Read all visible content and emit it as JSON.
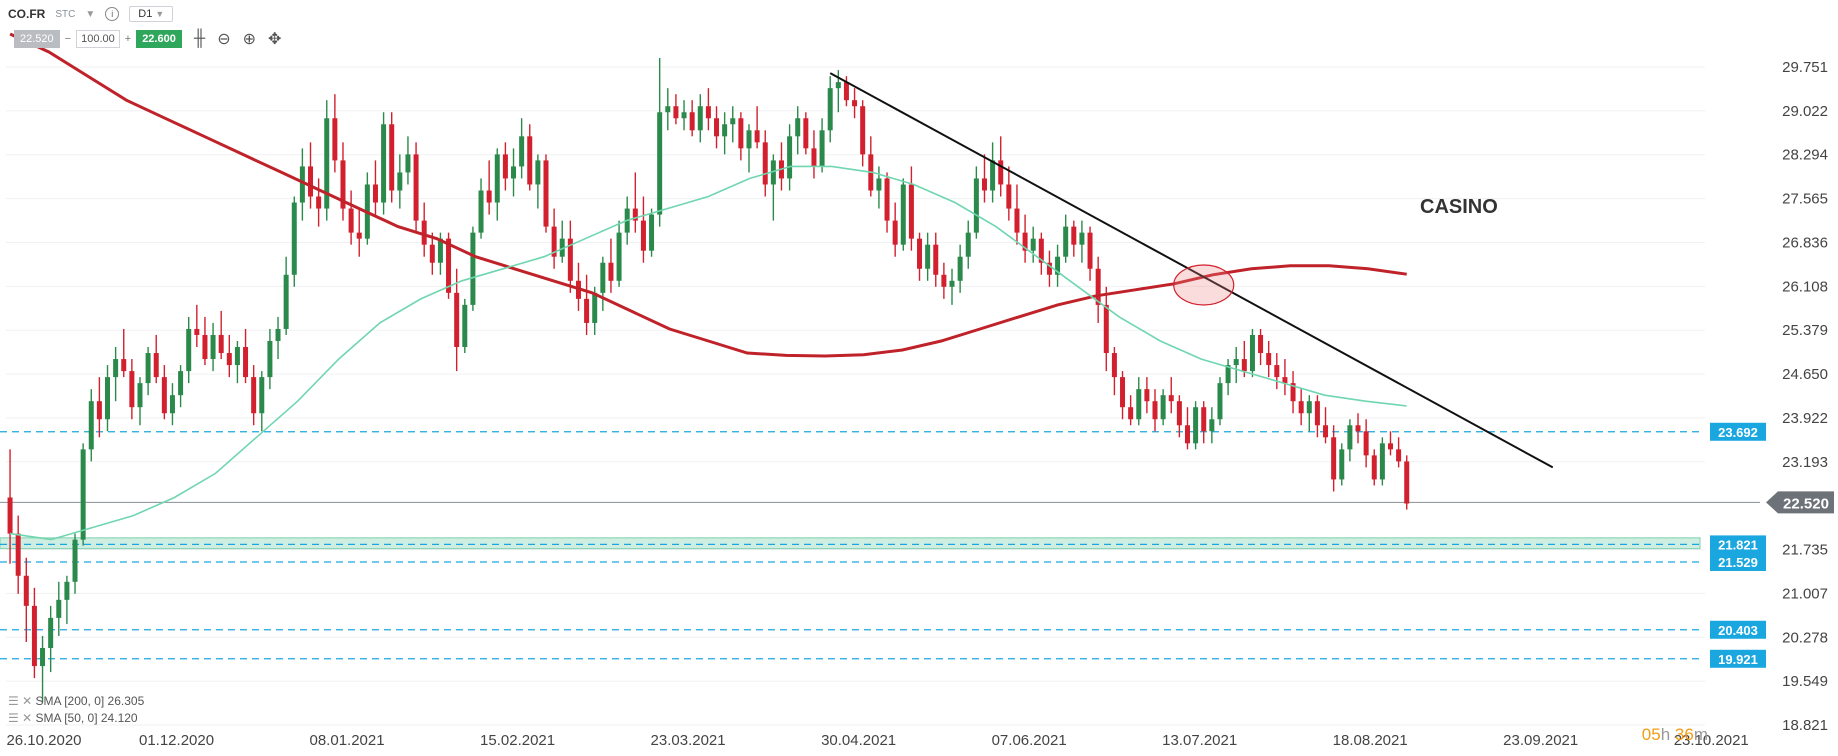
{
  "toolbar": {
    "symbol": "CO.FR",
    "exchange": "STC",
    "timeframe": "D1",
    "bid": "22.520",
    "volume": "100.00",
    "ask": "22.600",
    "minus": "−",
    "plus": "+",
    "icons": [
      "chevron-down-icon",
      "info-icon",
      "candles-icon",
      "zoom-out-icon",
      "zoom-in-icon",
      "crosshair-icon"
    ]
  },
  "indicators": {
    "sma200": "SMA [200, 0] 26.305",
    "sma50": "SMA [50, 0] 24.120"
  },
  "countdown": {
    "h": "05",
    "hl": "h",
    "m": "36",
    "ml": "m"
  },
  "chart_data": {
    "type": "candlestick",
    "title": "CASINO",
    "ylim": [
      18.821,
      30.2
    ],
    "y_ticks": [
      "29.751",
      "29.022",
      "28.294",
      "27.565",
      "26.836",
      "26.108",
      "25.379",
      "24.650",
      "23.922",
      "23.193",
      "22.520",
      "21.735",
      "21.007",
      "20.278",
      "19.549",
      "18.821"
    ],
    "x_ticks": [
      "26.10.2020",
      "01.12.2020",
      "08.01.2021",
      "15.02.2021",
      "23.03.2021",
      "30.04.2021",
      "07.06.2021",
      "13.07.2021",
      "18.08.2021",
      "23.09.2021",
      "23.10.2021"
    ],
    "current_price": 22.52,
    "levels": [
      23.692,
      21.821,
      21.529,
      20.403,
      19.921
    ],
    "support_zone": [
      21.75,
      21.93
    ],
    "colors": {
      "up": "#2b8a4b",
      "down": "#d2202e",
      "sma200": "#c0222a",
      "sma50": "#6fd6b0",
      "level": "#1aa7e0",
      "trend": "#111111",
      "price": "#7a7f85"
    },
    "ohlc": [
      [
        22.6,
        23.4,
        21.5,
        22.0
      ],
      [
        22.0,
        22.3,
        21.0,
        21.3
      ],
      [
        21.3,
        21.6,
        20.2,
        20.8
      ],
      [
        20.8,
        21.1,
        19.6,
        19.8
      ],
      [
        19.8,
        20.3,
        19.2,
        20.1
      ],
      [
        20.1,
        20.8,
        19.7,
        20.6
      ],
      [
        20.6,
        21.2,
        20.3,
        20.9
      ],
      [
        20.9,
        21.3,
        20.5,
        21.2
      ],
      [
        21.2,
        22.0,
        21.0,
        21.9
      ],
      [
        21.9,
        23.5,
        21.8,
        23.4
      ],
      [
        23.4,
        24.4,
        23.2,
        24.2
      ],
      [
        24.2,
        24.6,
        23.6,
        23.9
      ],
      [
        23.9,
        24.8,
        23.7,
        24.6
      ],
      [
        24.6,
        25.1,
        24.2,
        24.9
      ],
      [
        24.9,
        25.4,
        24.6,
        24.7
      ],
      [
        24.7,
        24.9,
        23.9,
        24.1
      ],
      [
        24.1,
        24.6,
        23.8,
        24.5
      ],
      [
        24.5,
        25.1,
        24.3,
        25.0
      ],
      [
        25.0,
        25.3,
        24.5,
        24.6
      ],
      [
        24.6,
        24.8,
        23.9,
        24.0
      ],
      [
        24.0,
        24.5,
        23.8,
        24.3
      ],
      [
        24.3,
        24.8,
        24.1,
        24.7
      ],
      [
        24.7,
        25.6,
        24.5,
        25.4
      ],
      [
        25.4,
        25.8,
        25.1,
        25.3
      ],
      [
        25.3,
        25.6,
        24.8,
        24.9
      ],
      [
        24.9,
        25.5,
        24.7,
        25.3
      ],
      [
        25.3,
        25.7,
        24.9,
        25.0
      ],
      [
        25.0,
        25.3,
        24.6,
        24.8
      ],
      [
        24.8,
        25.2,
        24.5,
        25.1
      ],
      [
        25.1,
        25.4,
        24.5,
        24.6
      ],
      [
        24.6,
        24.8,
        23.8,
        24.0
      ],
      [
        24.0,
        24.7,
        23.7,
        24.6
      ],
      [
        24.6,
        25.4,
        24.4,
        25.2
      ],
      [
        25.2,
        25.6,
        24.9,
        25.4
      ],
      [
        25.4,
        26.6,
        25.3,
        26.3
      ],
      [
        26.3,
        27.6,
        26.1,
        27.5
      ],
      [
        27.5,
        28.4,
        27.2,
        28.1
      ],
      [
        28.1,
        28.5,
        27.4,
        27.6
      ],
      [
        27.6,
        27.9,
        27.1,
        27.4
      ],
      [
        27.4,
        29.2,
        27.2,
        28.9
      ],
      [
        28.9,
        29.3,
        28.0,
        28.2
      ],
      [
        28.2,
        28.5,
        27.2,
        27.4
      ],
      [
        27.4,
        27.7,
        26.8,
        27.0
      ],
      [
        27.0,
        27.4,
        26.6,
        26.9
      ],
      [
        26.9,
        28.0,
        26.8,
        27.8
      ],
      [
        27.8,
        28.2,
        27.3,
        27.5
      ],
      [
        27.5,
        29.0,
        27.3,
        28.8
      ],
      [
        28.8,
        29.0,
        27.5,
        27.7
      ],
      [
        27.7,
        28.3,
        27.4,
        28.0
      ],
      [
        28.0,
        28.6,
        27.8,
        28.3
      ],
      [
        28.3,
        28.5,
        27.0,
        27.2
      ],
      [
        27.2,
        27.5,
        26.6,
        26.8
      ],
      [
        26.8,
        27.0,
        26.3,
        26.5
      ],
      [
        26.5,
        27.0,
        26.3,
        26.9
      ],
      [
        26.9,
        27.0,
        25.9,
        26.0
      ],
      [
        26.0,
        26.4,
        24.7,
        25.1
      ],
      [
        25.1,
        25.9,
        25.0,
        25.8
      ],
      [
        25.8,
        27.1,
        25.7,
        27.0
      ],
      [
        27.0,
        27.9,
        26.9,
        27.7
      ],
      [
        27.7,
        28.2,
        27.3,
        27.5
      ],
      [
        27.5,
        28.4,
        27.2,
        28.3
      ],
      [
        28.3,
        28.5,
        27.7,
        27.9
      ],
      [
        27.9,
        28.4,
        27.6,
        28.1
      ],
      [
        28.1,
        28.9,
        27.9,
        28.6
      ],
      [
        28.6,
        28.8,
        27.7,
        27.8
      ],
      [
        27.8,
        28.3,
        27.4,
        28.2
      ],
      [
        28.2,
        28.3,
        27.0,
        27.1
      ],
      [
        27.1,
        27.4,
        26.4,
        26.6
      ],
      [
        26.6,
        27.2,
        26.5,
        26.9
      ],
      [
        26.9,
        27.2,
        26.0,
        26.2
      ],
      [
        26.2,
        26.5,
        25.7,
        25.9
      ],
      [
        25.9,
        26.3,
        25.3,
        25.5
      ],
      [
        25.5,
        26.1,
        25.3,
        26.0
      ],
      [
        26.0,
        26.6,
        25.7,
        26.5
      ],
      [
        26.5,
        26.9,
        26.0,
        26.2
      ],
      [
        26.2,
        27.2,
        26.1,
        27.0
      ],
      [
        27.0,
        27.6,
        26.8,
        27.4
      ],
      [
        27.4,
        28.0,
        27.0,
        27.2
      ],
      [
        27.2,
        27.6,
        26.5,
        26.7
      ],
      [
        26.7,
        27.4,
        26.6,
        27.3
      ],
      [
        27.3,
        29.9,
        27.1,
        29.0
      ],
      [
        29.0,
        29.4,
        28.7,
        29.1
      ],
      [
        29.1,
        29.3,
        28.8,
        28.9
      ],
      [
        28.9,
        29.2,
        28.7,
        29.0
      ],
      [
        29.0,
        29.2,
        28.6,
        28.7
      ],
      [
        28.7,
        29.3,
        28.5,
        29.1
      ],
      [
        29.1,
        29.4,
        28.7,
        28.9
      ],
      [
        28.9,
        29.1,
        28.4,
        28.6
      ],
      [
        28.6,
        29.0,
        28.3,
        28.8
      ],
      [
        28.8,
        29.1,
        28.5,
        28.9
      ],
      [
        28.9,
        29.0,
        28.2,
        28.4
      ],
      [
        28.4,
        28.8,
        28.0,
        28.7
      ],
      [
        28.7,
        29.1,
        28.4,
        28.5
      ],
      [
        28.5,
        28.7,
        27.6,
        27.8
      ],
      [
        27.8,
        28.3,
        27.2,
        28.2
      ],
      [
        28.2,
        28.5,
        27.7,
        27.9
      ],
      [
        27.9,
        28.8,
        27.7,
        28.6
      ],
      [
        28.6,
        29.1,
        28.3,
        28.9
      ],
      [
        28.9,
        29.0,
        28.3,
        28.4
      ],
      [
        28.4,
        28.7,
        27.9,
        28.1
      ],
      [
        28.1,
        28.9,
        28.0,
        28.7
      ],
      [
        28.7,
        29.6,
        28.5,
        29.4
      ],
      [
        29.4,
        29.7,
        29.0,
        29.5
      ],
      [
        29.5,
        29.6,
        29.1,
        29.2
      ],
      [
        29.2,
        29.4,
        28.9,
        29.1
      ],
      [
        29.1,
        29.2,
        28.1,
        28.3
      ],
      [
        28.3,
        28.6,
        27.6,
        27.7
      ],
      [
        27.7,
        28.1,
        27.4,
        27.9
      ],
      [
        27.9,
        28.0,
        27.0,
        27.2
      ],
      [
        27.2,
        27.5,
        26.6,
        26.8
      ],
      [
        26.8,
        27.9,
        26.7,
        27.8
      ],
      [
        27.8,
        28.1,
        26.7,
        26.9
      ],
      [
        26.9,
        27.0,
        26.2,
        26.4
      ],
      [
        26.4,
        27.0,
        26.2,
        26.8
      ],
      [
        26.8,
        27.0,
        26.1,
        26.3
      ],
      [
        26.3,
        26.5,
        25.9,
        26.1
      ],
      [
        26.1,
        26.4,
        25.8,
        26.2
      ],
      [
        26.2,
        26.8,
        26.0,
        26.6
      ],
      [
        26.6,
        27.2,
        26.4,
        27.0
      ],
      [
        27.0,
        28.1,
        26.9,
        27.9
      ],
      [
        27.9,
        28.3,
        27.5,
        27.7
      ],
      [
        27.7,
        28.5,
        27.5,
        28.2
      ],
      [
        28.2,
        28.6,
        27.6,
        27.8
      ],
      [
        27.8,
        28.1,
        27.2,
        27.4
      ],
      [
        27.4,
        27.8,
        26.8,
        27.0
      ],
      [
        27.0,
        27.3,
        26.5,
        26.7
      ],
      [
        26.7,
        27.1,
        26.5,
        26.9
      ],
      [
        26.9,
        27.0,
        26.3,
        26.5
      ],
      [
        26.5,
        26.7,
        26.1,
        26.3
      ],
      [
        26.3,
        26.8,
        26.1,
        26.6
      ],
      [
        26.6,
        27.3,
        26.5,
        27.1
      ],
      [
        27.1,
        27.2,
        26.6,
        26.8
      ],
      [
        26.8,
        27.2,
        26.5,
        27.0
      ],
      [
        27.0,
        27.1,
        26.2,
        26.4
      ],
      [
        26.4,
        26.6,
        25.5,
        25.8
      ],
      [
        25.8,
        26.1,
        24.7,
        25.0
      ],
      [
        25.0,
        25.1,
        24.3,
        24.6
      ],
      [
        24.6,
        24.7,
        23.9,
        24.1
      ],
      [
        24.1,
        24.3,
        23.8,
        23.9
      ],
      [
        23.9,
        24.6,
        23.8,
        24.4
      ],
      [
        24.4,
        24.6,
        24.0,
        24.2
      ],
      [
        24.2,
        24.4,
        23.7,
        23.9
      ],
      [
        23.9,
        24.4,
        23.8,
        24.3
      ],
      [
        24.3,
        24.6,
        24.0,
        24.2
      ],
      [
        24.2,
        24.3,
        23.6,
        23.8
      ],
      [
        23.8,
        24.1,
        23.4,
        23.5
      ],
      [
        23.5,
        24.2,
        23.4,
        24.1
      ],
      [
        24.1,
        24.2,
        23.5,
        23.7
      ],
      [
        23.7,
        24.1,
        23.5,
        23.9
      ],
      [
        23.9,
        24.6,
        23.8,
        24.5
      ],
      [
        24.5,
        24.9,
        24.3,
        24.8
      ],
      [
        24.8,
        25.1,
        24.5,
        24.9
      ],
      [
        24.9,
        25.2,
        24.6,
        24.7
      ],
      [
        24.7,
        25.4,
        24.6,
        25.3
      ],
      [
        25.3,
        25.4,
        24.8,
        25.0
      ],
      [
        25.0,
        25.2,
        24.6,
        24.8
      ],
      [
        24.8,
        25.0,
        24.4,
        24.6
      ],
      [
        24.6,
        24.9,
        24.3,
        24.5
      ],
      [
        24.5,
        24.7,
        24.0,
        24.2
      ],
      [
        24.2,
        24.4,
        23.8,
        24.0
      ],
      [
        24.0,
        24.3,
        23.7,
        24.2
      ],
      [
        24.2,
        24.3,
        23.6,
        23.8
      ],
      [
        23.8,
        24.1,
        23.5,
        23.6
      ],
      [
        23.6,
        23.8,
        22.7,
        22.9
      ],
      [
        22.9,
        23.5,
        22.8,
        23.4
      ],
      [
        23.4,
        23.9,
        23.2,
        23.8
      ],
      [
        23.8,
        24.0,
        23.5,
        23.7
      ],
      [
        23.7,
        23.9,
        23.1,
        23.3
      ],
      [
        23.3,
        23.4,
        22.8,
        22.9
      ],
      [
        22.9,
        23.6,
        22.8,
        23.5
      ],
      [
        23.5,
        23.7,
        23.3,
        23.4
      ],
      [
        23.4,
        23.6,
        23.1,
        23.2
      ],
      [
        23.2,
        23.3,
        22.4,
        22.5
      ]
    ],
    "sma200_values": [
      30.3,
      30.0,
      29.6,
      29.2,
      28.9,
      28.6,
      28.3,
      28.0,
      27.7,
      27.4,
      27.1,
      26.9,
      26.6,
      26.4,
      26.2,
      26.0,
      25.7,
      25.4,
      25.2,
      25.0,
      24.96,
      24.95,
      24.97,
      25.05,
      25.2,
      25.4,
      25.6,
      25.8,
      25.95,
      26.05,
      26.15,
      26.3,
      26.4,
      26.45,
      26.45,
      26.4,
      26.31
    ],
    "sma50_values": [
      22.0,
      21.9,
      22.1,
      22.3,
      22.6,
      23.0,
      23.6,
      24.2,
      24.9,
      25.5,
      25.9,
      26.2,
      26.4,
      26.6,
      26.9,
      27.2,
      27.4,
      27.6,
      27.9,
      28.1,
      28.1,
      28.0,
      27.8,
      27.5,
      27.1,
      26.6,
      26.1,
      25.6,
      25.2,
      24.9,
      24.7,
      24.5,
      24.3,
      24.2,
      24.12
    ],
    "trendline": {
      "from": [
        101,
        29.65
      ],
      "to": [
        189,
        23.1
      ]
    },
    "ellipse_at": [
      147,
      26.13
    ]
  }
}
